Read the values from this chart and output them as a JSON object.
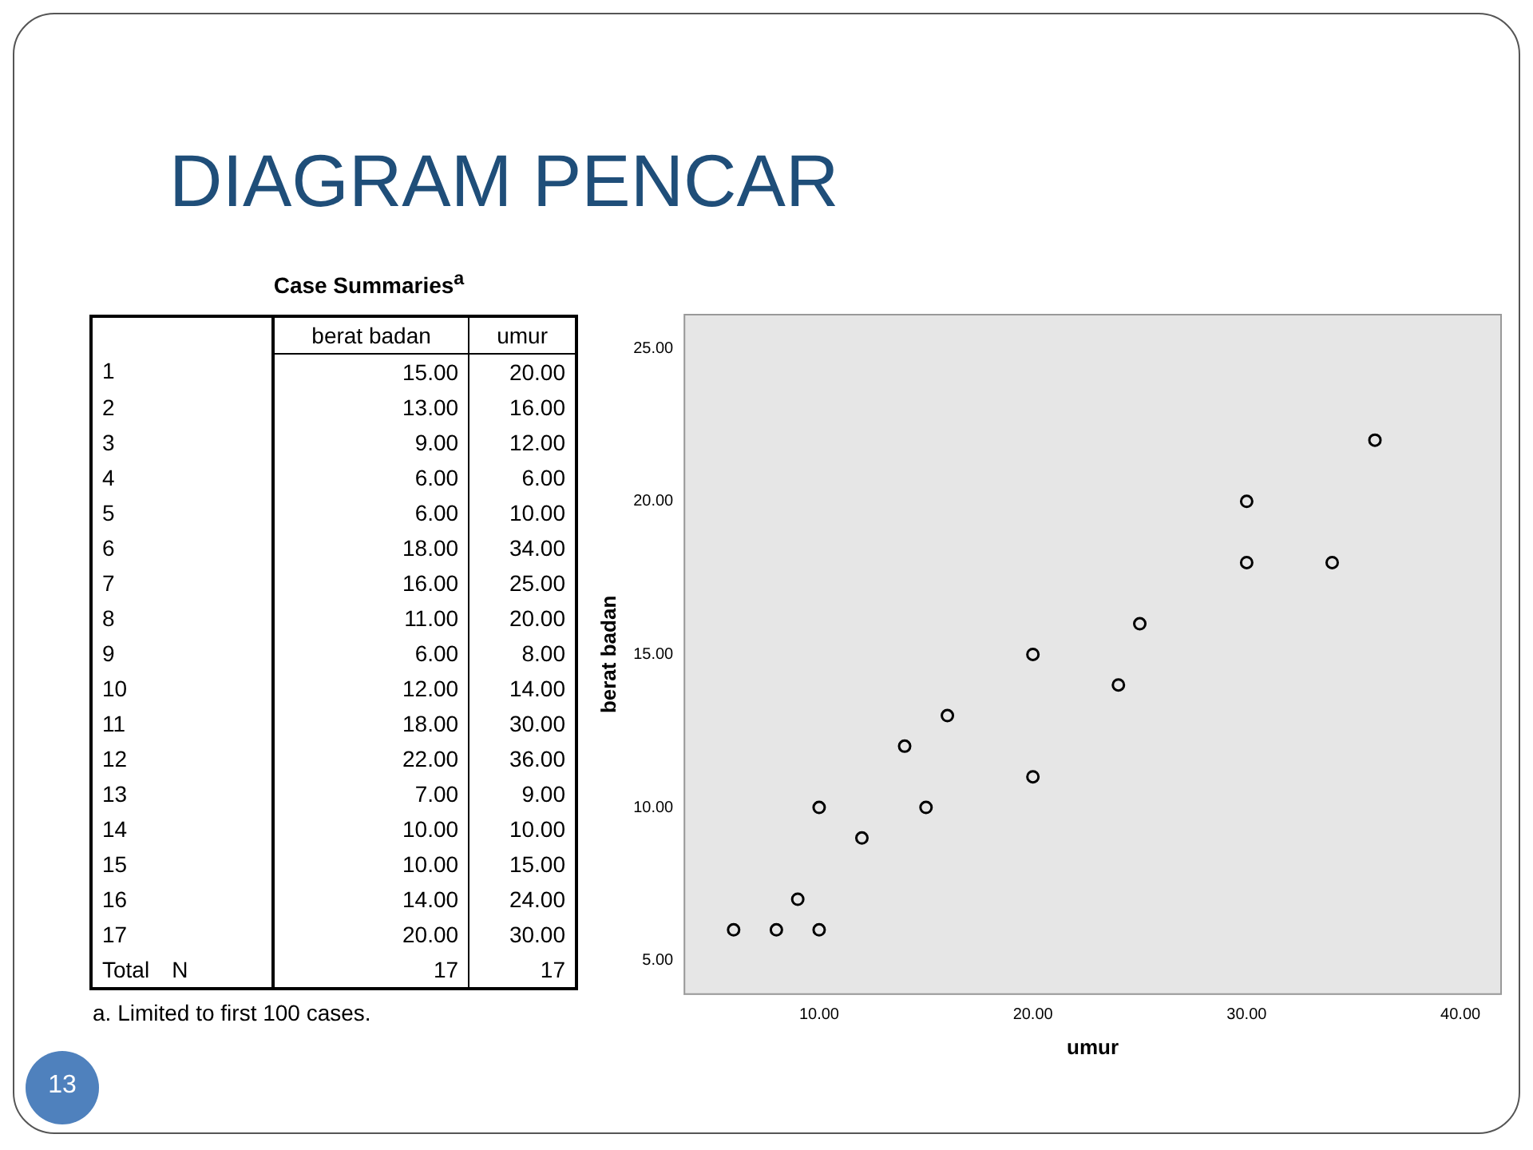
{
  "chart_data": [
    {
      "type": "heatmap",
      "title": "Case Summaries$^{a}$",
      "categories": [
        "berat badan",
        "umur"
      ],
      "y_categories": [
        "1",
        "2",
        "3",
        "4",
        "5",
        "6",
        "7",
        "8",
        "9",
        "10",
        "11",
        "12",
        "13",
        "14",
        "15",
        "16",
        "17"
      ],
      "cells": [
        [
          15,
          20
        ],
        [
          13,
          16
        ],
        [
          9,
          12
        ],
        [
          6,
          6
        ],
        [
          6,
          10
        ],
        [
          18,
          34
        ],
        [
          16,
          25
        ],
        [
          11,
          20
        ],
        [
          6,
          8
        ],
        [
          12,
          14
        ],
        [
          18,
          30
        ],
        [
          22,
          36
        ],
        [
          7,
          9
        ],
        [
          10,
          10
        ],
        [
          10,
          15
        ],
        [
          14,
          24
        ],
        [
          20,
          30
        ]
      ],
      "cell_labels": [
        [
          "15.00",
          "20.00"
        ],
        [
          "13.00",
          "16.00"
        ],
        [
          "9.00",
          "12.00"
        ],
        [
          "6.00",
          "6.00"
        ],
        [
          "6.00",
          "10.00"
        ],
        [
          "18.00",
          "34.00"
        ],
        [
          "16.00",
          "25.00"
        ],
        [
          "11.00",
          "20.00"
        ],
        [
          "6.00",
          "8.00"
        ],
        [
          "12.00",
          "14.00"
        ],
        [
          "18.00",
          "30.00"
        ],
        [
          "22.00",
          "36.00"
        ],
        [
          "7.00",
          "9.00"
        ],
        [
          "10.00",
          "10.00"
        ],
        [
          "10.00",
          "15.00"
        ],
        [
          "14.00",
          "24.00"
        ],
        [
          "20.00",
          "30.00"
        ]
      ],
      "annotations": [
        "Total",
        "N",
        "17",
        "a. Limited to first 100 cases."
      ]
    },
    {
      "type": "scatter",
      "title": "DIAGRAM PENCAR",
      "xlabel": "umur",
      "ylabel": "berat badan",
      "x": [
        20,
        16,
        12,
        6,
        10,
        34,
        25,
        20,
        8,
        14,
        30,
        36,
        9,
        10,
        15,
        24,
        30
      ],
      "values": [
        15,
        13,
        9,
        6,
        6,
        18,
        16,
        11,
        6,
        12,
        18,
        22,
        7,
        10,
        10,
        14,
        20
      ],
      "color": "#000000",
      "marker": "circle",
      "grid": false,
      "legend": false,
      "xlim": [
        3.7,
        41.9
      ],
      "ylim": [
        3.9,
        26.1
      ],
      "xticks": [
        {
          "value": 10,
          "label": "10.00"
        },
        {
          "value": 20,
          "label": "20.00"
        },
        {
          "value": 30,
          "label": "30.00"
        },
        {
          "value": 40,
          "label": "40.00"
        }
      ],
      "yticks": [
        {
          "value": 5,
          "label": "5.00"
        },
        {
          "value": 10,
          "label": "10.00"
        },
        {
          "value": 15,
          "label": "15.00"
        },
        {
          "value": 20,
          "label": "20.00"
        },
        {
          "value": 25,
          "label": "25.00"
        }
      ],
      "annotations": [
        "13"
      ]
    }
  ]
}
